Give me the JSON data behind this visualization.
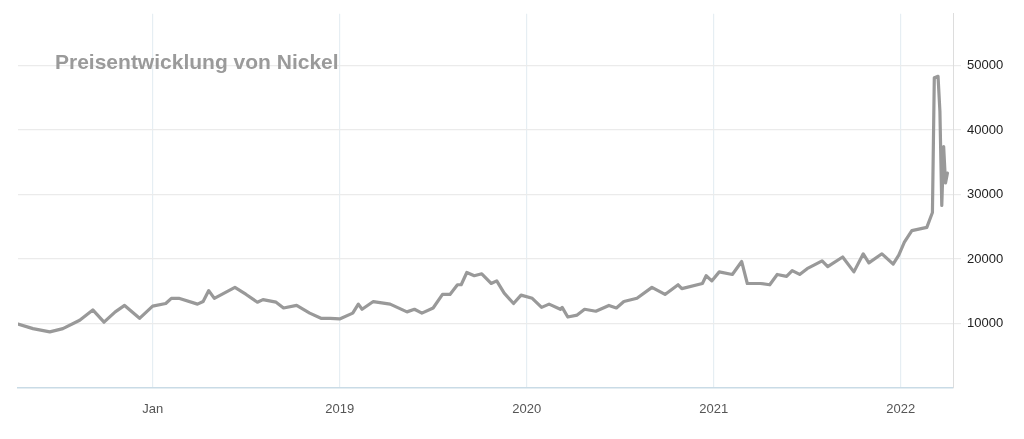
{
  "chart_data": {
    "type": "line",
    "title": "Preisentwicklung von Nickel",
    "xlim": [
      2017.28,
      2022.28
    ],
    "xticks": [
      {
        "value": 2018,
        "label": "Jan"
      },
      2019,
      2020,
      2021,
      2022
    ],
    "ylim": [
      0,
      58000
    ],
    "yticks": [
      10000,
      20000,
      30000,
      40000,
      50000
    ],
    "grid": true,
    "legend": false,
    "marker": "none",
    "line_style": "solid",
    "series": [
      {
        "color": "#999999",
        "x": [
          2017.28,
          2017.36,
          2017.45,
          2017.52,
          2017.61,
          2017.68,
          2017.74,
          2017.8,
          2017.85,
          2017.93,
          2018.0,
          2018.07,
          2018.1,
          2018.14,
          2018.24,
          2018.27,
          2018.3,
          2018.33,
          2018.44,
          2018.5,
          2018.56,
          2018.59,
          2018.66,
          2018.7,
          2018.77,
          2018.84,
          2018.9,
          2018.95,
          2019.0,
          2019.07,
          2019.1,
          2019.12,
          2019.18,
          2019.27,
          2019.36,
          2019.4,
          2019.44,
          2019.5,
          2019.55,
          2019.59,
          2019.63,
          2019.65,
          2019.68,
          2019.72,
          2019.76,
          2019.81,
          2019.84,
          2019.88,
          2019.93,
          2019.97,
          2020.03,
          2020.08,
          2020.12,
          2020.18,
          2020.19,
          2020.22,
          2020.27,
          2020.31,
          2020.37,
          2020.44,
          2020.48,
          2020.52,
          2020.59,
          2020.67,
          2020.74,
          2020.81,
          2020.83,
          2020.94,
          2020.96,
          2020.99,
          2021.03,
          2021.1,
          2021.15,
          2021.18,
          2021.25,
          2021.3,
          2021.34,
          2021.39,
          2021.42,
          2021.46,
          2021.5,
          2021.58,
          2021.61,
          2021.69,
          2021.75,
          2021.8,
          2021.83,
          2021.9,
          2021.96,
          2021.99,
          2022.02,
          2022.06,
          2022.14,
          2022.17,
          2022.18,
          2022.2,
          2022.21,
          2022.22,
          2022.23,
          2022.24,
          2022.25
        ],
        "values": [
          9900,
          9200,
          8700,
          9200,
          10500,
          12100,
          10200,
          11800,
          12800,
          10800,
          12700,
          13100,
          13900,
          13900,
          13000,
          13400,
          15100,
          13900,
          15600,
          14500,
          13300,
          13700,
          13300,
          12400,
          12800,
          11600,
          10800,
          10800,
          10700,
          11600,
          13000,
          12200,
          13400,
          13000,
          11800,
          12200,
          11600,
          12400,
          14500,
          14500,
          16000,
          16000,
          17900,
          17400,
          17700,
          16200,
          16600,
          14700,
          13100,
          14400,
          13900,
          12500,
          13000,
          12200,
          12500,
          11000,
          11300,
          12200,
          11900,
          12800,
          12400,
          13400,
          13900,
          15600,
          14500,
          16000,
          15400,
          16200,
          17400,
          16600,
          18000,
          17600,
          19600,
          16200,
          16200,
          16000,
          17600,
          17300,
          18200,
          17600,
          18500,
          19700,
          18800,
          20300,
          18000,
          20800,
          19400,
          20800,
          19200,
          20600,
          22600,
          24400,
          24900,
          27200,
          48100,
          48300,
          42900,
          28300,
          37400,
          31800,
          33300
        ]
      }
    ]
  }
}
